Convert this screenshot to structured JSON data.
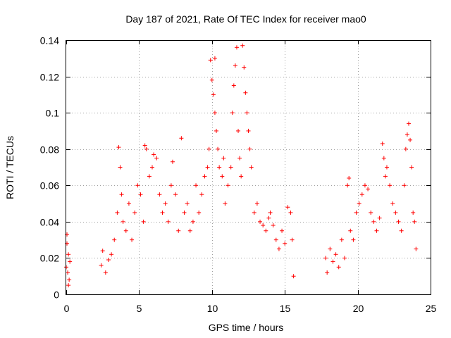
{
  "chart_data": {
    "type": "scatter",
    "title": "Day 187 of 2021, Rate Of TEC Index for receiver mao0",
    "xlabel": "GPS time / hours",
    "ylabel": "ROTI / TECUs",
    "xlim": [
      0,
      25
    ],
    "ylim": [
      0,
      0.14
    ],
    "xticks": [
      "0",
      "5",
      "10",
      "15",
      "20",
      "25"
    ],
    "yticks": [
      "0",
      "0.02",
      "0.04",
      "0.06",
      "0.08",
      "0.1",
      "0.12",
      "0.14"
    ],
    "grid": true,
    "marker": "+",
    "color": "#ff0000",
    "series": [
      {
        "name": "ROTI",
        "points": [
          [
            0.0,
            0.015
          ],
          [
            0.05,
            0.028
          ],
          [
            0.1,
            0.012
          ],
          [
            0.15,
            0.022
          ],
          [
            0.2,
            0.008
          ],
          [
            0.25,
            0.018
          ],
          [
            0.05,
            0.033
          ],
          [
            0.15,
            0.005
          ],
          [
            2.4,
            0.016
          ],
          [
            2.5,
            0.024
          ],
          [
            2.7,
            0.012
          ],
          [
            2.9,
            0.019
          ],
          [
            3.1,
            0.022
          ],
          [
            3.3,
            0.03
          ],
          [
            3.5,
            0.045
          ],
          [
            3.6,
            0.081
          ],
          [
            3.7,
            0.07
          ],
          [
            3.8,
            0.055
          ],
          [
            3.9,
            0.04
          ],
          [
            4.1,
            0.035
          ],
          [
            4.3,
            0.05
          ],
          [
            4.5,
            0.03
          ],
          [
            4.7,
            0.045
          ],
          [
            4.9,
            0.06
          ],
          [
            5.1,
            0.055
          ],
          [
            5.3,
            0.04
          ],
          [
            5.4,
            0.082
          ],
          [
            5.5,
            0.08
          ],
          [
            5.7,
            0.065
          ],
          [
            5.9,
            0.07
          ],
          [
            6.0,
            0.077
          ],
          [
            6.2,
            0.075
          ],
          [
            6.4,
            0.055
          ],
          [
            6.6,
            0.045
          ],
          [
            6.8,
            0.05
          ],
          [
            7.0,
            0.04
          ],
          [
            7.2,
            0.06
          ],
          [
            7.3,
            0.073
          ],
          [
            7.5,
            0.055
          ],
          [
            7.7,
            0.035
          ],
          [
            7.9,
            0.086
          ],
          [
            8.1,
            0.045
          ],
          [
            8.3,
            0.05
          ],
          [
            8.5,
            0.035
          ],
          [
            8.7,
            0.04
          ],
          [
            8.9,
            0.06
          ],
          [
            9.1,
            0.045
          ],
          [
            9.3,
            0.055
          ],
          [
            9.5,
            0.065
          ],
          [
            9.7,
            0.07
          ],
          [
            9.8,
            0.08
          ],
          [
            9.9,
            0.129
          ],
          [
            10.0,
            0.118
          ],
          [
            10.1,
            0.11
          ],
          [
            10.2,
            0.1
          ],
          [
            10.2,
            0.13
          ],
          [
            10.3,
            0.09
          ],
          [
            10.4,
            0.08
          ],
          [
            10.5,
            0.07
          ],
          [
            10.7,
            0.065
          ],
          [
            10.8,
            0.075
          ],
          [
            10.9,
            0.05
          ],
          [
            11.1,
            0.06
          ],
          [
            11.3,
            0.07
          ],
          [
            11.4,
            0.1
          ],
          [
            11.5,
            0.115
          ],
          [
            11.6,
            0.126
          ],
          [
            11.7,
            0.136
          ],
          [
            11.8,
            0.09
          ],
          [
            11.9,
            0.075
          ],
          [
            12.0,
            0.065
          ],
          [
            12.1,
            0.137
          ],
          [
            12.2,
            0.125
          ],
          [
            12.3,
            0.111
          ],
          [
            12.4,
            0.1
          ],
          [
            12.5,
            0.09
          ],
          [
            12.6,
            0.08
          ],
          [
            12.7,
            0.07
          ],
          [
            12.9,
            0.045
          ],
          [
            13.1,
            0.05
          ],
          [
            13.3,
            0.04
          ],
          [
            13.5,
            0.038
          ],
          [
            13.7,
            0.035
          ],
          [
            13.9,
            0.042
          ],
          [
            14.0,
            0.045
          ],
          [
            14.2,
            0.038
          ],
          [
            14.4,
            0.03
          ],
          [
            14.6,
            0.025
          ],
          [
            14.8,
            0.035
          ],
          [
            15.0,
            0.028
          ],
          [
            15.2,
            0.048
          ],
          [
            15.4,
            0.045
          ],
          [
            15.5,
            0.03
          ],
          [
            15.6,
            0.01
          ],
          [
            17.8,
            0.02
          ],
          [
            17.9,
            0.012
          ],
          [
            18.1,
            0.025
          ],
          [
            18.3,
            0.018
          ],
          [
            18.5,
            0.022
          ],
          [
            18.7,
            0.015
          ],
          [
            18.9,
            0.03
          ],
          [
            19.1,
            0.02
          ],
          [
            19.3,
            0.06
          ],
          [
            19.4,
            0.064
          ],
          [
            19.5,
            0.035
          ],
          [
            19.7,
            0.03
          ],
          [
            19.9,
            0.045
          ],
          [
            20.1,
            0.05
          ],
          [
            20.3,
            0.055
          ],
          [
            20.5,
            0.06
          ],
          [
            20.7,
            0.058
          ],
          [
            20.9,
            0.045
          ],
          [
            21.1,
            0.04
          ],
          [
            21.3,
            0.035
          ],
          [
            21.5,
            0.042
          ],
          [
            21.7,
            0.083
          ],
          [
            21.8,
            0.075
          ],
          [
            21.9,
            0.065
          ],
          [
            22.0,
            0.07
          ],
          [
            22.2,
            0.06
          ],
          [
            22.4,
            0.05
          ],
          [
            22.6,
            0.045
          ],
          [
            22.8,
            0.04
          ],
          [
            23.0,
            0.035
          ],
          [
            23.2,
            0.06
          ],
          [
            23.3,
            0.08
          ],
          [
            23.4,
            0.088
          ],
          [
            23.5,
            0.094
          ],
          [
            23.6,
            0.085
          ],
          [
            23.7,
            0.07
          ],
          [
            23.8,
            0.045
          ],
          [
            23.9,
            0.04
          ],
          [
            24.0,
            0.025
          ]
        ]
      }
    ]
  }
}
